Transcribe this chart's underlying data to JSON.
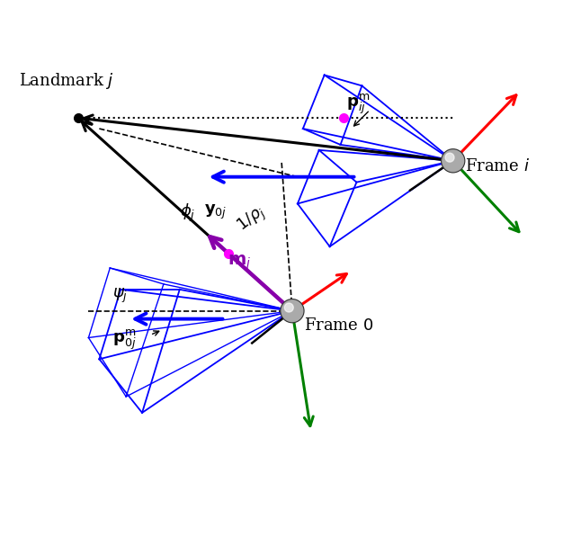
{
  "frame0": [
    0.52,
    0.42
  ],
  "framei": [
    0.82,
    0.7
  ],
  "landmark": [
    0.12,
    0.78
  ],
  "background_color": "#ffffff",
  "fs": 13
}
